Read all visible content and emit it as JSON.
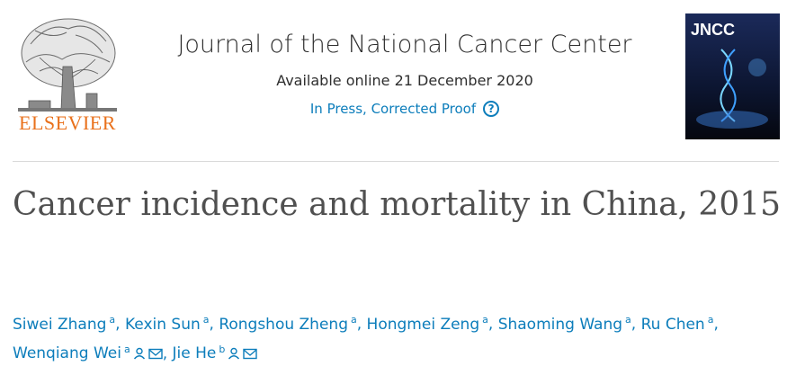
{
  "header": {
    "publisher": "ELSEVIER",
    "journal_title": "Journal of the National Cancer Center",
    "available": "Available online 21 December 2020",
    "status": "In Press, Corrected Proof",
    "cover_label": "JNCC"
  },
  "article": {
    "title": "Cancer incidence and mortality in China, 2015"
  },
  "authors": [
    {
      "name": "Siwei Zhang",
      "aff": "a",
      "icons": []
    },
    {
      "name": "Kexin Sun",
      "aff": "a",
      "icons": []
    },
    {
      "name": "Rongshou Zheng",
      "aff": "a",
      "icons": []
    },
    {
      "name": "Hongmei Zeng",
      "aff": "a",
      "icons": []
    },
    {
      "name": "Shaoming Wang",
      "aff": "a",
      "icons": []
    },
    {
      "name": "Ru Chen",
      "aff": "a",
      "icons": []
    },
    {
      "name": "Wenqiang Wei",
      "aff": "a",
      "icons": [
        "person-icon",
        "mail-icon"
      ]
    },
    {
      "name": "Jie He",
      "aff": "b",
      "icons": [
        "person-icon",
        "mail-icon"
      ]
    }
  ],
  "colors": {
    "link": "#0c7dbb",
    "brand_orange": "#e9711c",
    "title_gray": "#505050"
  }
}
